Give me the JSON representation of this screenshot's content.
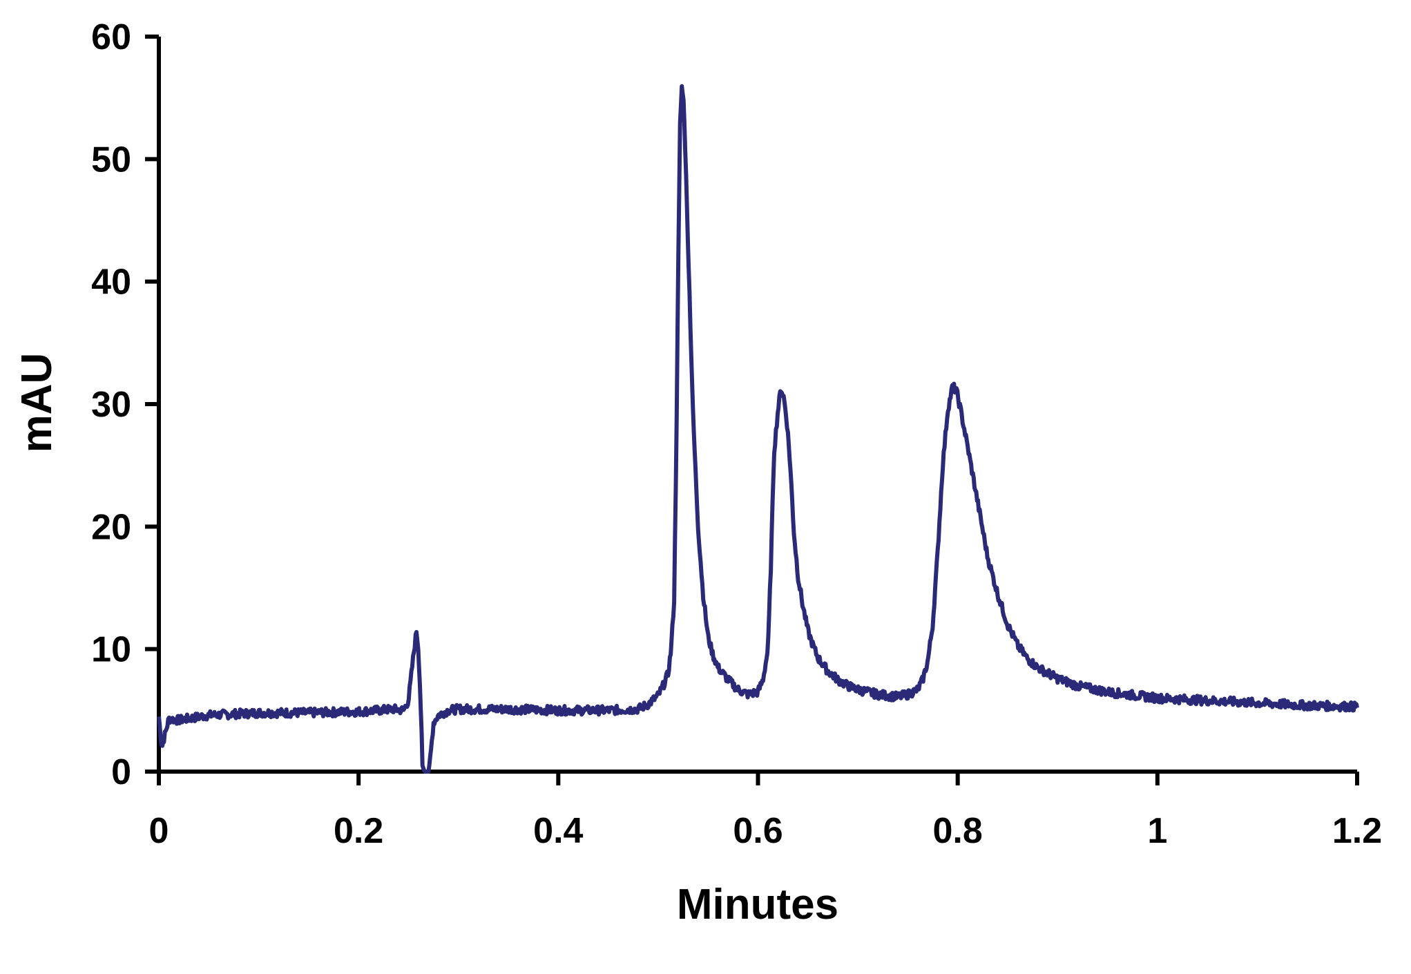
{
  "chart_data": {
    "type": "line",
    "title": "",
    "xlabel": "Minutes",
    "ylabel": "mAU",
    "xlim": [
      0,
      1.2
    ],
    "ylim": [
      0,
      60
    ],
    "x_ticks": [
      0,
      0.2,
      0.4,
      0.6,
      0.8,
      1,
      1.2
    ],
    "x_tick_labels": [
      "0",
      "0.2",
      "0.4",
      "0.6",
      "0.8",
      "1",
      "1.2"
    ],
    "y_ticks": [
      0,
      10,
      20,
      30,
      40,
      50,
      60
    ],
    "y_tick_labels": [
      "0",
      "10",
      "20",
      "30",
      "40",
      "50",
      "60"
    ],
    "grid": false,
    "legend": "none",
    "line_color": "#2a2a78",
    "axis_color": "#000000",
    "series": [
      {
        "x": [
          0,
          0.003,
          0.01,
          0.02,
          0.05,
          0.1,
          0.15,
          0.2,
          0.22,
          0.235,
          0.245,
          0.25,
          0.255,
          0.258,
          0.26,
          0.262,
          0.264,
          0.266,
          0.268,
          0.27,
          0.272,
          0.275,
          0.28,
          0.285,
          0.29,
          0.3,
          0.35,
          0.4,
          0.45,
          0.48,
          0.49,
          0.5,
          0.505,
          0.51,
          0.513,
          0.516,
          0.518,
          0.52,
          0.522,
          0.524,
          0.526,
          0.53,
          0.535,
          0.54,
          0.545,
          0.55,
          0.555,
          0.56,
          0.57,
          0.58,
          0.59,
          0.6,
          0.605,
          0.61,
          0.613,
          0.616,
          0.62,
          0.623,
          0.626,
          0.629,
          0.631,
          0.633,
          0.636,
          0.64,
          0.645,
          0.65,
          0.655,
          0.66,
          0.67,
          0.68,
          0.69,
          0.7,
          0.72,
          0.74,
          0.75,
          0.76,
          0.765,
          0.77,
          0.775,
          0.78,
          0.785,
          0.79,
          0.795,
          0.799,
          0.803,
          0.81,
          0.82,
          0.83,
          0.84,
          0.85,
          0.86,
          0.87,
          0.88,
          0.9,
          0.92,
          0.95,
          1.0,
          1.05,
          1.1,
          1.15,
          1.2
        ],
        "values": [
          4.5,
          2.0,
          4.3,
          4.2,
          4.6,
          4.8,
          4.8,
          4.9,
          5.0,
          5.1,
          5.0,
          5.8,
          9.5,
          11.5,
          10.0,
          6.0,
          0.5,
          0.0,
          0.0,
          0.0,
          1.2,
          4.0,
          4.6,
          4.8,
          5.0,
          5.1,
          5.1,
          5.0,
          5.0,
          5.1,
          5.5,
          6.2,
          7.0,
          8.0,
          10.0,
          14.0,
          25.0,
          40.0,
          53.0,
          56.3,
          54.0,
          43.0,
          29.0,
          20.0,
          14.5,
          11.0,
          9.5,
          8.5,
          7.5,
          6.7,
          6.3,
          6.5,
          7.5,
          10.0,
          17.0,
          26.0,
          29.5,
          31.3,
          30.5,
          28.5,
          26.5,
          24.0,
          19.5,
          16.0,
          13.5,
          11.5,
          10.3,
          9.3,
          8.2,
          7.5,
          7.0,
          6.7,
          6.3,
          6.1,
          6.3,
          6.7,
          7.5,
          9.0,
          12.0,
          18.0,
          25.0,
          29.5,
          31.5,
          31.0,
          29.5,
          26.5,
          22.0,
          17.5,
          14.5,
          12.0,
          10.3,
          9.2,
          8.5,
          7.6,
          7.0,
          6.5,
          6.0,
          5.8,
          5.6,
          5.4,
          5.3
        ]
      }
    ]
  }
}
